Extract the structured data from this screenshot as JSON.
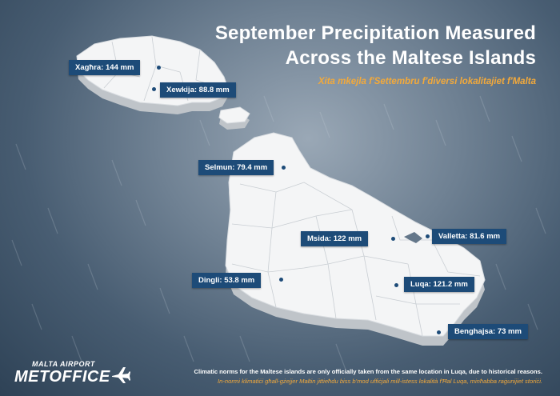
{
  "header": {
    "title_line1": "September Precipitation Measured",
    "title_line2": "Across the Maltese Islands",
    "subtitle": "Xita mkejla f'Settembru f'diversi lokalitajiet f'Malta"
  },
  "stations": [
    {
      "name": "Xagħra",
      "value_mm": 144,
      "label": "Xagħra: 144 mm"
    },
    {
      "name": "Xewkija",
      "value_mm": 88.8,
      "label": "Xewkija: 88.8 mm"
    },
    {
      "name": "Selmun",
      "value_mm": 79.4,
      "label": "Selmun: 79.4 mm"
    },
    {
      "name": "Msida",
      "value_mm": 122,
      "label": "Msida: 122 mm"
    },
    {
      "name": "Valletta",
      "value_mm": 81.6,
      "label": "Valletta: 81.6 mm"
    },
    {
      "name": "Dingli",
      "value_mm": 53.8,
      "label": "Dingli: 53.8 mm"
    },
    {
      "name": "Luqa",
      "value_mm": 121.2,
      "label": "Luqa: 121.2 mm"
    },
    {
      "name": "Benghajsa",
      "value_mm": 73,
      "label": "Benghajsa: 73 mm"
    }
  ],
  "logo": {
    "top": "MALTA AIRPORT",
    "bottom": "METOFFICE",
    "icon": "airplane-icon"
  },
  "footnote": {
    "english": "Climatic norms for the Maltese islands are only officially taken from the same location in Luqa, due to historical reasons.",
    "maltese": "In-normi klimatiċi għall-gżejjer Maltin jittieħdu biss b'mod uffiċjali mill-istess lokalità f'Ħal Luqa, minħabba raġunijiet storiċi."
  },
  "colors": {
    "label_bg": "#1d4b78",
    "accent": "#f2a93b",
    "land": "#f4f5f6",
    "land_side": "#bfc4c9"
  }
}
